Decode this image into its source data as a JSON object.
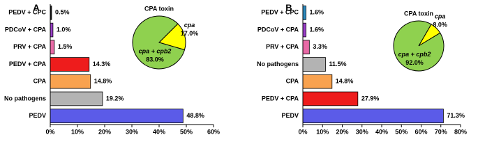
{
  "chart_data": [
    {
      "type": "bar",
      "panel": "A",
      "categories": [
        "PEDV + CPC",
        "PDCoV + CPA",
        "PRV + CPA",
        "PEDV + CPA",
        "CPA",
        "No pathogens",
        "PEDV"
      ],
      "values": [
        0.5,
        1.0,
        1.5,
        14.3,
        14.8,
        19.2,
        48.8
      ],
      "value_labels": [
        "0.5%",
        "1.0%",
        "1.5%",
        "14.3%",
        "14.8%",
        "19.2%",
        "48.8%"
      ],
      "colors": [
        "#1a1a1a",
        "#9a3fc9",
        "#e86aa6",
        "#ee1c1c",
        "#f9a24f",
        "#b3b3b3",
        "#5b5be8"
      ],
      "xlim": [
        0,
        60
      ],
      "xticks": [
        {
          "value": 0,
          "label": "0%"
        },
        {
          "value": 10,
          "label": "10%"
        },
        {
          "value": 20,
          "label": "20%"
        },
        {
          "value": 30,
          "label": "30%"
        },
        {
          "value": 40,
          "label": "40%"
        },
        {
          "value": 50,
          "label": "50%"
        },
        {
          "value": 60,
          "label": "60%"
        }
      ]
    },
    {
      "type": "pie",
      "title": "CPA toxin",
      "categories": [
        "cpa",
        "cpa + cpb2"
      ],
      "values": [
        17.0,
        83.0
      ],
      "value_labels": [
        "17.0%",
        "83.0%"
      ],
      "colors": [
        "#ffff00",
        "#8fd14f"
      ]
    },
    {
      "type": "bar",
      "panel": "B",
      "categories": [
        "PEDV + CPC",
        "PDCoV + CPA",
        "PRV + CPA",
        "No pathogens",
        "CPA",
        "PEDV + CPA",
        "PEDV"
      ],
      "values": [
        1.6,
        1.6,
        3.3,
        11.5,
        14.8,
        27.9,
        71.3
      ],
      "value_labels": [
        "1.6%",
        "1.6%",
        "3.3%",
        "11.5%",
        "14.8%",
        "27.9%",
        "71.3%"
      ],
      "colors": [
        "#2e8bc0",
        "#9a3fc9",
        "#e86aa6",
        "#b3b3b3",
        "#f9a24f",
        "#ee1c1c",
        "#5b5be8"
      ],
      "xlim": [
        0,
        80
      ],
      "xticks": [
        {
          "value": 0,
          "label": "0%"
        },
        {
          "value": 10,
          "label": "10%"
        },
        {
          "value": 20,
          "label": "20%"
        },
        {
          "value": 30,
          "label": "30%"
        },
        {
          "value": 40,
          "label": "40%"
        },
        {
          "value": 50,
          "label": "50%"
        },
        {
          "value": 60,
          "label": "60%"
        },
        {
          "value": 70,
          "label": "70%"
        },
        {
          "value": 80,
          "label": "80%"
        }
      ]
    },
    {
      "type": "pie",
      "title": "CPA toxin",
      "categories": [
        "cpa",
        "cpa + cpb2"
      ],
      "values": [
        8.0,
        92.0
      ],
      "value_labels": [
        "8.0%",
        "92.0%"
      ],
      "colors": [
        "#ffff00",
        "#8fd14f"
      ]
    }
  ]
}
